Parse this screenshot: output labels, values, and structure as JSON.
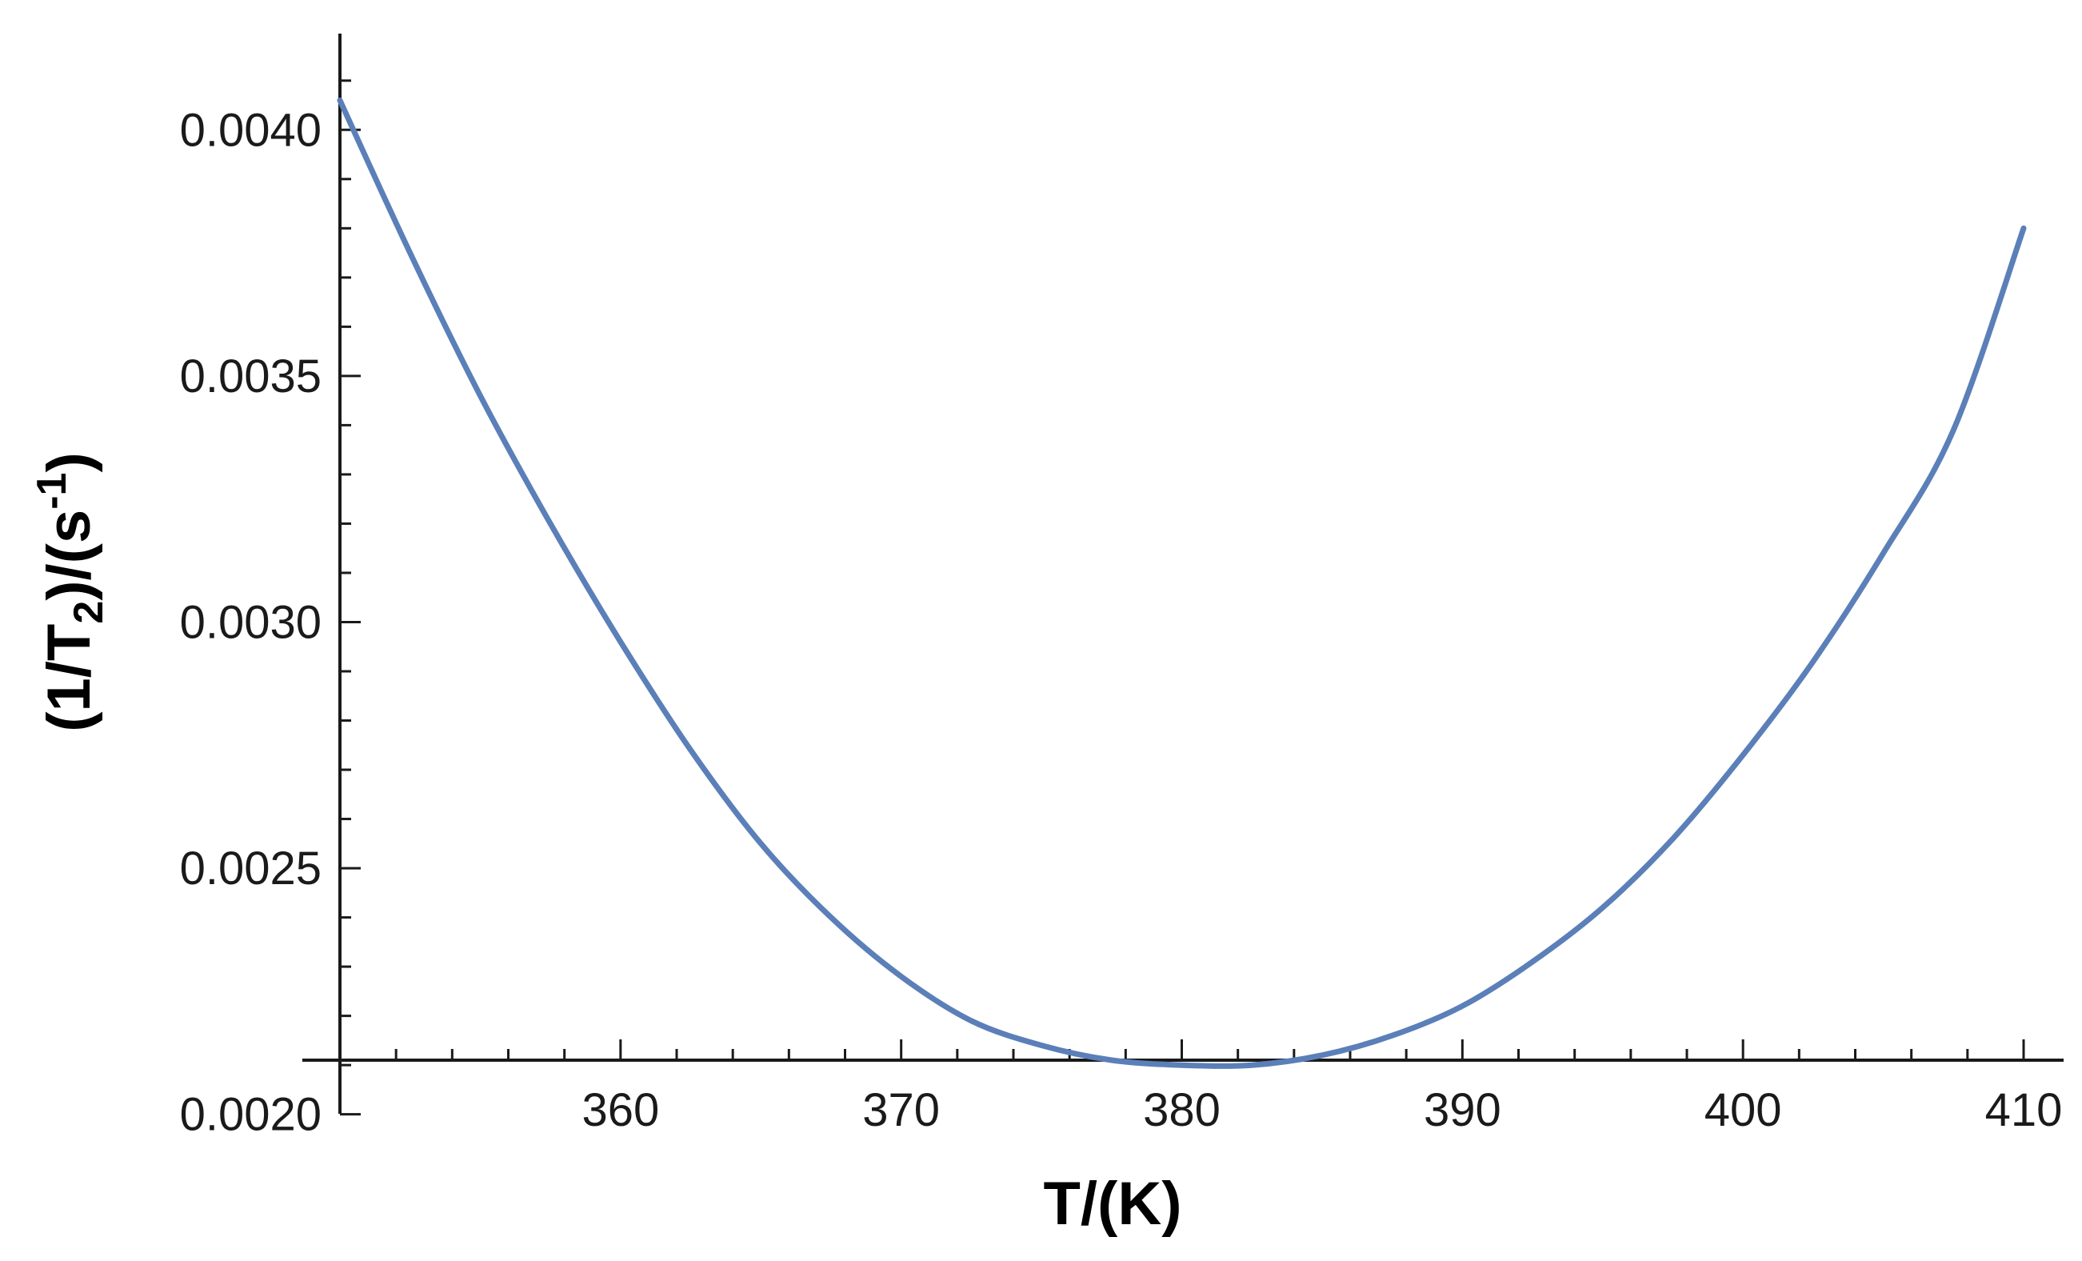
{
  "chart_data": {
    "type": "line",
    "title": "",
    "xlabel": {
      "prefix": "T/(K)"
    },
    "ylabel": {
      "part1": "(1/T",
      "sub": "2",
      "part2": ")/(s",
      "sup": "-1",
      "part3": ")"
    },
    "xlim": [
      350,
      410
    ],
    "ylim": [
      0.00211,
      0.00415
    ],
    "x_ticks": [
      {
        "value": 360,
        "label": "360"
      },
      {
        "value": 370,
        "label": "370"
      },
      {
        "value": 380,
        "label": "380"
      },
      {
        "value": 390,
        "label": "390"
      },
      {
        "value": 400,
        "label": "400"
      },
      {
        "value": 410,
        "label": "410"
      }
    ],
    "y_ticks": [
      {
        "value": 0.002,
        "label": "0.0020"
      },
      {
        "value": 0.0025,
        "label": "0.0025"
      },
      {
        "value": 0.003,
        "label": "0.0030"
      },
      {
        "value": 0.0035,
        "label": "0.0035"
      },
      {
        "value": 0.004,
        "label": "0.0040"
      }
    ],
    "x_minor_step": 2,
    "y_minor_step": 0.0001,
    "grid": false,
    "legend": "none",
    "series": [
      {
        "color": "#5b7fb8",
        "x": [
          350,
          352.5,
          355,
          357.5,
          360,
          362.5,
          365,
          367.5,
          370,
          372.5,
          375,
          377.5,
          380,
          382.5,
          385,
          387.5,
          390,
          392.5,
          395,
          397.5,
          400,
          402.5,
          405,
          407.5,
          410
        ],
        "y": [
          0.00406,
          0.00375,
          0.00346,
          0.0032,
          0.00296,
          0.00274,
          0.00255,
          0.0024,
          0.00228,
          0.00219,
          0.00214,
          0.00211,
          0.0021,
          0.0021,
          0.00212,
          0.00216,
          0.00222,
          0.00231,
          0.00242,
          0.00256,
          0.00273,
          0.00292,
          0.00314,
          0.00339,
          0.0038
        ]
      }
    ]
  }
}
